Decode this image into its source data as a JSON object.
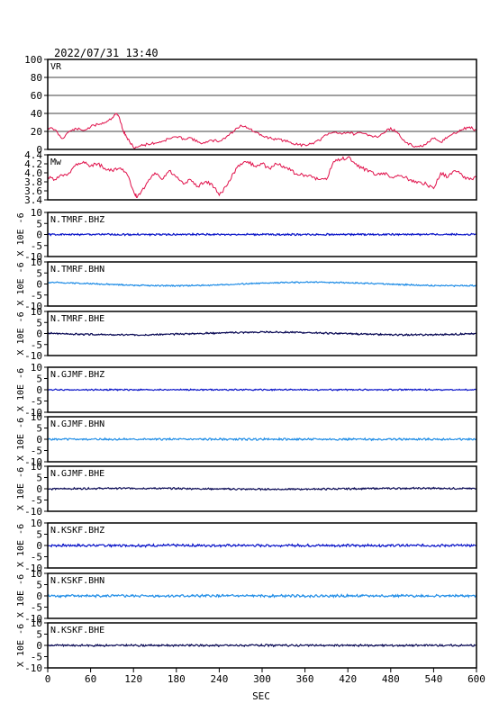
{
  "header": {
    "timestamp": "2022/07/31  13:40"
  },
  "chart_data": {
    "type": "line",
    "x_axis": {
      "label": "SEC",
      "range": [
        0,
        600
      ],
      "ticks": [
        0,
        60,
        120,
        180,
        240,
        300,
        360,
        420,
        480,
        540,
        600
      ],
      "tick_labels": [
        "0",
        "60",
        "120",
        "180",
        "240",
        "300",
        "360",
        "420",
        "480",
        "540",
        "600"
      ]
    },
    "panels": [
      {
        "label": "VR",
        "color": "#e0104a",
        "ylim": [
          0,
          100
        ],
        "yticks": [
          0,
          20,
          40,
          60,
          80,
          100
        ],
        "ytick_labels": [
          "0",
          "20",
          "40",
          "60",
          "80",
          "100"
        ],
        "grid": true,
        "x": [
          0,
          10,
          20,
          30,
          40,
          50,
          60,
          70,
          80,
          90,
          95,
          100,
          105,
          110,
          115,
          120,
          130,
          140,
          150,
          160,
          170,
          180,
          190,
          200,
          210,
          220,
          230,
          240,
          250,
          260,
          270,
          280,
          290,
          300,
          310,
          320,
          330,
          340,
          350,
          360,
          370,
          380,
          390,
          400,
          410,
          420,
          430,
          440,
          450,
          460,
          470,
          480,
          490,
          500,
          510,
          520,
          530,
          540,
          550,
          560,
          570,
          580,
          590,
          600
        ],
        "y": [
          24,
          22,
          12,
          20,
          23,
          21,
          25,
          28,
          30,
          35,
          40,
          36,
          22,
          14,
          8,
          2,
          4,
          6,
          7,
          9,
          12,
          14,
          12,
          13,
          8,
          7,
          10,
          9,
          14,
          20,
          27,
          24,
          19,
          15,
          13,
          11,
          10,
          8,
          5,
          5,
          7,
          10,
          16,
          19,
          18,
          19,
          17,
          18,
          16,
          14,
          18,
          24,
          18,
          8,
          4,
          3,
          6,
          12,
          8,
          14,
          18,
          22,
          25,
          21
        ]
      },
      {
        "label": "Mw",
        "color": "#e0104a",
        "ylim": [
          3.4,
          4.4
        ],
        "yticks": [
          3.4,
          3.6,
          3.8,
          4.0,
          4.2,
          4.4
        ],
        "ytick_labels": [
          "3.4",
          "3.6",
          "3.8",
          "4.0",
          "4.2",
          "4.4"
        ],
        "grid": false,
        "x": [
          0,
          10,
          20,
          30,
          40,
          50,
          60,
          70,
          80,
          90,
          100,
          110,
          120,
          125,
          130,
          140,
          150,
          160,
          170,
          180,
          190,
          200,
          210,
          220,
          230,
          240,
          250,
          260,
          270,
          280,
          290,
          300,
          310,
          320,
          330,
          340,
          350,
          360,
          370,
          380,
          390,
          400,
          410,
          420,
          430,
          440,
          450,
          460,
          470,
          480,
          490,
          500,
          510,
          520,
          530,
          540,
          550,
          560,
          570,
          580,
          590,
          600
        ],
        "y": [
          3.9,
          3.85,
          3.95,
          4.0,
          4.2,
          4.25,
          4.15,
          4.2,
          4.1,
          4.05,
          4.1,
          4.0,
          3.6,
          3.45,
          3.55,
          3.8,
          4.0,
          3.85,
          4.05,
          3.9,
          3.75,
          3.85,
          3.7,
          3.8,
          3.75,
          3.5,
          3.7,
          4.0,
          4.2,
          4.25,
          4.15,
          4.2,
          4.1,
          4.2,
          4.15,
          4.05,
          3.95,
          3.95,
          3.9,
          3.85,
          3.85,
          4.25,
          4.3,
          4.35,
          4.2,
          4.1,
          4.05,
          3.95,
          4.0,
          3.9,
          3.95,
          3.9,
          3.8,
          3.8,
          3.75,
          3.65,
          4.0,
          3.9,
          4.05,
          3.95,
          3.85,
          3.9
        ]
      },
      {
        "label": "N.TMRF.BHZ",
        "color": "#0a14c8",
        "noise": 0.35,
        "drift": 0.0,
        "seed": 1
      },
      {
        "label": "N.TMRF.BHN",
        "color": "#1e8ce6",
        "noise": 0.25,
        "drift": 0.8,
        "seed": 2
      },
      {
        "label": "N.TMRF.BHE",
        "color": "#0a0a55",
        "noise": 0.3,
        "drift": 0.6,
        "seed": 3
      },
      {
        "label": "N.GJMF.BHZ",
        "color": "#0a14c8",
        "noise": 0.25,
        "drift": 0.0,
        "seed": 4
      },
      {
        "label": "N.GJMF.BHN",
        "color": "#1e8ce6",
        "noise": 0.35,
        "drift": 0.0,
        "seed": 5
      },
      {
        "label": "N.GJMF.BHE",
        "color": "#0a0a55",
        "noise": 0.3,
        "drift": 0.2,
        "seed": 6
      },
      {
        "label": "N.KSKF.BHZ",
        "color": "#0a14c8",
        "noise": 0.45,
        "drift": 0.0,
        "seed": 7
      },
      {
        "label": "N.KSKF.BHN",
        "color": "#1e8ce6",
        "noise": 0.45,
        "drift": 0.0,
        "seed": 8
      },
      {
        "label": "N.KSKF.BHE",
        "color": "#0a0a55",
        "noise": 0.35,
        "drift": 0.0,
        "seed": 9
      }
    ],
    "waveform_axis": {
      "ylim": [
        -10,
        10
      ],
      "yticks": [
        -10,
        -5,
        0,
        5,
        10
      ],
      "ytick_labels": [
        "-10",
        "-5",
        "0",
        "5",
        "10"
      ],
      "ylabel": "X 10E -6"
    }
  }
}
